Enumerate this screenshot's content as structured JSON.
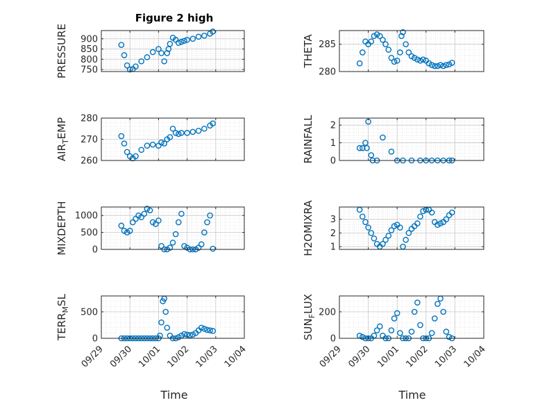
{
  "figure_title": "Figure 2 high",
  "x_axis_label": "Time",
  "x_tick_labels": [
    "09/29",
    "09/30",
    "10/01",
    "10/02",
    "10/03",
    "10/04"
  ],
  "marker_color": "#0072BD",
  "chart_data": [
    {
      "type": "scatter",
      "marker": "circle",
      "grid": true,
      "title": "Figure 2 high",
      "ylabel": "PRESSURE",
      "ylim": [
        740,
        940
      ],
      "yticks": [
        750,
        800,
        850,
        900
      ],
      "x": [
        0.7,
        0.8,
        0.9,
        1.0,
        1.1,
        1.2,
        1.4,
        1.6,
        1.8,
        2.0,
        2.1,
        2.2,
        2.3,
        2.35,
        2.4,
        2.5,
        2.6,
        2.7,
        2.8,
        2.9,
        3.0,
        3.2,
        3.4,
        3.6,
        3.8,
        3.9
      ],
      "y": [
        870,
        820,
        770,
        750,
        752,
        765,
        790,
        810,
        835,
        850,
        830,
        790,
        830,
        850,
        875,
        905,
        895,
        880,
        885,
        890,
        895,
        900,
        910,
        915,
        925,
        935
      ]
    },
    {
      "type": "scatter",
      "marker": "circle",
      "grid": true,
      "ylabel": "THETA",
      "ylim": [
        280,
        287.5
      ],
      "yticks": [
        280,
        285
      ],
      "x": [
        0.7,
        0.8,
        0.9,
        1.0,
        1.1,
        1.2,
        1.3,
        1.4,
        1.5,
        1.6,
        1.7,
        1.8,
        1.9,
        2.0,
        2.1,
        2.15,
        2.2,
        2.3,
        2.4,
        2.5,
        2.6,
        2.7,
        2.8,
        2.9,
        3.0,
        3.1,
        3.2,
        3.3,
        3.4,
        3.5,
        3.6,
        3.7,
        3.8,
        3.9
      ],
      "y": [
        281.5,
        283.5,
        285.5,
        285,
        285.5,
        286.5,
        286.8,
        286.5,
        285.8,
        285,
        284,
        282.5,
        281.8,
        282,
        283.5,
        286.5,
        287.2,
        285,
        283.5,
        282.8,
        282.5,
        282.2,
        282,
        282.2,
        282,
        281.5,
        281.2,
        281,
        281,
        281.2,
        281,
        281.2,
        281.3,
        281.6
      ]
    },
    {
      "type": "scatter",
      "marker": "circle",
      "grid": true,
      "ylabel": "AIR_TEMP",
      "ylim": [
        260,
        280
      ],
      "yticks": [
        260,
        270,
        280
      ],
      "x": [
        0.7,
        0.8,
        0.9,
        1.0,
        1.1,
        1.2,
        1.4,
        1.6,
        1.8,
        2.0,
        2.1,
        2.2,
        2.3,
        2.4,
        2.5,
        2.6,
        2.7,
        2.8,
        3.0,
        3.2,
        3.4,
        3.6,
        3.8,
        3.9
      ],
      "y": [
        271.5,
        268,
        264,
        262,
        261,
        262,
        265,
        267,
        267.5,
        267,
        268.5,
        268,
        270,
        271,
        275,
        273,
        272.5,
        273,
        273,
        273.5,
        274,
        275,
        276.5,
        277.5
      ]
    },
    {
      "type": "scatter",
      "marker": "circle",
      "grid": true,
      "ylabel": "RAINFALL",
      "ylim": [
        0,
        2.4
      ],
      "yticks": [
        0,
        1,
        2
      ],
      "x": [
        0.7,
        0.8,
        0.9,
        0.95,
        1.0,
        1.1,
        1.15,
        1.3,
        1.5,
        1.8,
        2.0,
        2.2,
        2.5,
        2.8,
        3.0,
        3.2,
        3.4,
        3.6,
        3.8,
        3.9
      ],
      "y": [
        0.7,
        0.7,
        1.0,
        0.7,
        2.2,
        0.3,
        0,
        0,
        1.3,
        0.5,
        0,
        0,
        0,
        0,
        0,
        0,
        0,
        0,
        0,
        0
      ]
    },
    {
      "type": "scatter",
      "marker": "circle",
      "grid": true,
      "ylabel": "MIXDEPTH",
      "ylim": [
        0,
        1250
      ],
      "yticks": [
        0,
        500,
        1000
      ],
      "x": [
        0.7,
        0.8,
        0.9,
        1.0,
        1.1,
        1.2,
        1.3,
        1.4,
        1.5,
        1.6,
        1.7,
        1.8,
        1.9,
        2.0,
        2.1,
        2.2,
        2.3,
        2.4,
        2.5,
        2.6,
        2.7,
        2.8,
        2.9,
        3.0,
        3.1,
        3.2,
        3.3,
        3.4,
        3.5,
        3.6,
        3.7,
        3.8,
        3.9
      ],
      "y": [
        700,
        550,
        500,
        550,
        800,
        900,
        1000,
        950,
        1050,
        1200,
        1150,
        800,
        750,
        850,
        100,
        0,
        0,
        50,
        200,
        450,
        800,
        1050,
        100,
        50,
        0,
        0,
        0,
        50,
        150,
        500,
        800,
        1000,
        20
      ]
    },
    {
      "type": "scatter",
      "marker": "circle",
      "grid": true,
      "ylabel": "H2OMIXRA",
      "ylim": [
        0.8,
        3.9
      ],
      "yticks": [
        1,
        2,
        3
      ],
      "x": [
        0.7,
        0.8,
        0.9,
        1.0,
        1.1,
        1.2,
        1.3,
        1.4,
        1.5,
        1.6,
        1.7,
        1.8,
        1.9,
        2.0,
        2.1,
        2.2,
        2.3,
        2.4,
        2.5,
        2.6,
        2.7,
        2.8,
        2.9,
        3.0,
        3.1,
        3.2,
        3.3,
        3.4,
        3.5,
        3.6,
        3.7,
        3.8,
        3.9
      ],
      "y": [
        3.7,
        3.2,
        2.8,
        2.4,
        2.0,
        1.6,
        1.2,
        1.0,
        1.2,
        1.5,
        1.8,
        2.2,
        2.5,
        2.6,
        2.4,
        1.0,
        1.5,
        2.0,
        2.3,
        2.5,
        2.7,
        3.2,
        3.6,
        3.7,
        3.7,
        3.5,
        2.8,
        2.6,
        2.7,
        2.8,
        3.0,
        3.3,
        3.5
      ]
    },
    {
      "type": "scatter",
      "marker": "circle",
      "grid": true,
      "ylabel": "TERR_MSL",
      "ylim": [
        0,
        800
      ],
      "yticks": [
        0,
        500
      ],
      "x": [
        0.7,
        0.8,
        0.9,
        1.0,
        1.1,
        1.2,
        1.3,
        1.4,
        1.5,
        1.6,
        1.7,
        1.8,
        1.9,
        2.0,
        2.05,
        2.1,
        2.15,
        2.2,
        2.25,
        2.3,
        2.4,
        2.5,
        2.6,
        2.7,
        2.8,
        2.9,
        3.0,
        3.1,
        3.2,
        3.3,
        3.4,
        3.5,
        3.6,
        3.7,
        3.8,
        3.9
      ],
      "y": [
        0,
        0,
        0,
        0,
        0,
        0,
        0,
        0,
        0,
        0,
        0,
        0,
        0,
        0,
        50,
        300,
        700,
        750,
        500,
        200,
        50,
        0,
        0,
        20,
        50,
        80,
        70,
        60,
        70,
        100,
        150,
        200,
        180,
        160,
        150,
        140
      ]
    },
    {
      "type": "scatter",
      "marker": "circle",
      "grid": true,
      "ylabel": "SUN_FLUX",
      "ylim": [
        0,
        320
      ],
      "yticks": [
        0,
        200
      ],
      "x": [
        0.7,
        0.8,
        0.9,
        1.0,
        1.1,
        1.2,
        1.3,
        1.4,
        1.5,
        1.6,
        1.7,
        1.8,
        1.9,
        2.0,
        2.1,
        2.2,
        2.3,
        2.4,
        2.5,
        2.6,
        2.7,
        2.8,
        2.9,
        3.0,
        3.1,
        3.2,
        3.3,
        3.4,
        3.5,
        3.6,
        3.7,
        3.8,
        3.9
      ],
      "y": [
        20,
        10,
        0,
        0,
        0,
        20,
        60,
        90,
        20,
        0,
        0,
        60,
        150,
        190,
        40,
        0,
        0,
        0,
        50,
        200,
        270,
        100,
        0,
        0,
        0,
        40,
        150,
        260,
        300,
        200,
        50,
        10,
        0
      ]
    }
  ]
}
